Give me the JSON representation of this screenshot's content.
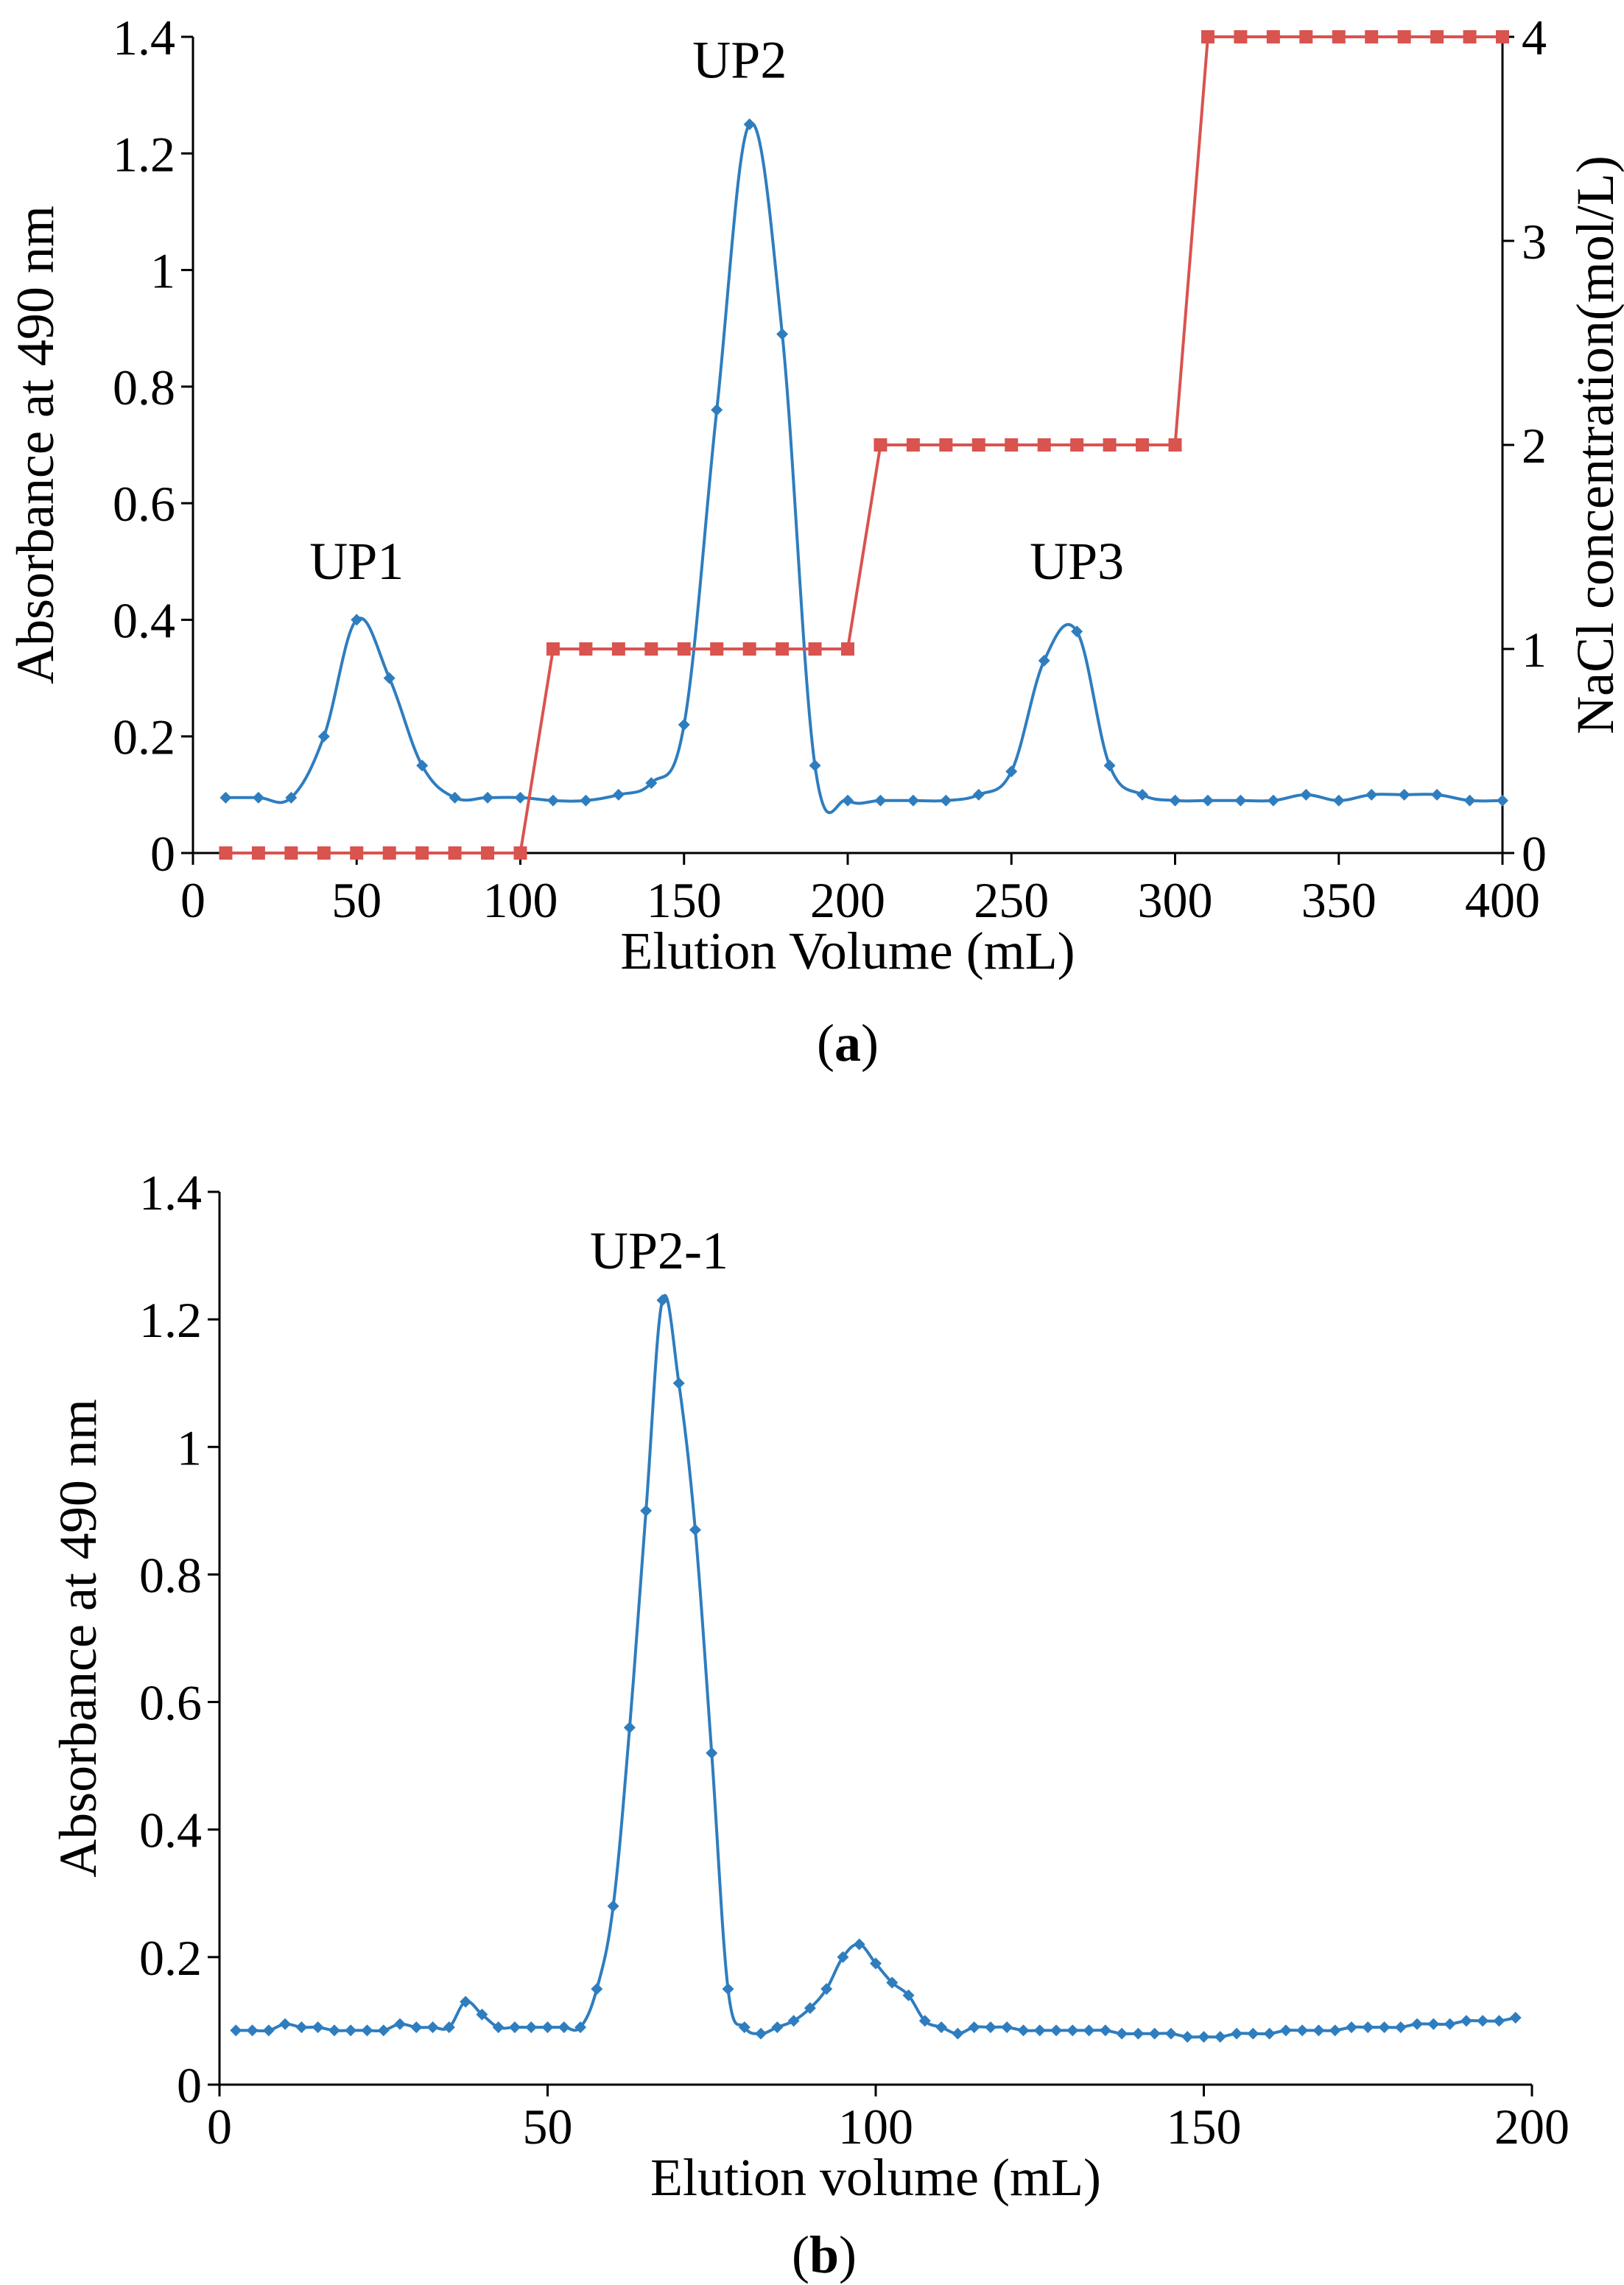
{
  "chart_data": [
    {
      "type": "line",
      "panel_label": "a",
      "xlabel": "Elution Volume (mL)",
      "ylabel": "Absorbance at 490 nm",
      "y2label": "NaCl concentration(mol/L)",
      "xlim": [
        0,
        400
      ],
      "ylim": [
        0,
        1.4
      ],
      "y2lim": [
        0,
        4
      ],
      "xticks": [
        "0",
        "50",
        "100",
        "150",
        "200",
        "250",
        "300",
        "350",
        "400"
      ],
      "yticks": [
        "0",
        "0.2",
        "0.4",
        "0.6",
        "0.8",
        "1",
        "1.2",
        "1.4"
      ],
      "y2ticks": [
        "0",
        "1",
        "2",
        "3",
        "4"
      ],
      "grid": false,
      "annotations": [
        {
          "text": "UP1",
          "x": 50,
          "y": 0.47
        },
        {
          "text": "UP2",
          "x": 167,
          "y": 1.33
        },
        {
          "text": "UP3",
          "x": 270,
          "y": 0.47
        }
      ],
      "series": [
        {
          "color": "#2e7dbf",
          "axis": "left",
          "marker": "diamond",
          "x": [
            10,
            20,
            30,
            40,
            50,
            60,
            70,
            80,
            90,
            100,
            110,
            120,
            130,
            140,
            150,
            160,
            170,
            180,
            190,
            200,
            210,
            220,
            230,
            240,
            250,
            260,
            270,
            280,
            290,
            300,
            310,
            320,
            330,
            340,
            350,
            360,
            370,
            380,
            390,
            400
          ],
          "y": [
            0.095,
            0.095,
            0.095,
            0.2,
            0.4,
            0.3,
            0.15,
            0.095,
            0.095,
            0.095,
            0.09,
            0.09,
            0.1,
            0.12,
            0.22,
            0.76,
            1.25,
            0.89,
            0.15,
            0.09,
            0.09,
            0.09,
            0.09,
            0.1,
            0.14,
            0.33,
            0.38,
            0.15,
            0.1,
            0.09,
            0.09,
            0.09,
            0.09,
            0.1,
            0.09,
            0.1,
            0.1,
            0.1,
            0.09,
            0.09
          ]
        },
        {
          "color": "#d9534f",
          "axis": "right",
          "marker": "square",
          "x": [
            10,
            20,
            30,
            40,
            50,
            60,
            70,
            80,
            90,
            100,
            110,
            120,
            130,
            140,
            150,
            160,
            170,
            180,
            190,
            200,
            210,
            220,
            230,
            240,
            250,
            260,
            270,
            280,
            290,
            300,
            310,
            320,
            330,
            340,
            350,
            360,
            370,
            380,
            390,
            400
          ],
          "y": [
            0,
            0,
            0,
            0,
            0,
            0,
            0,
            0,
            0,
            0,
            1,
            1,
            1,
            1,
            1,
            1,
            1,
            1,
            1,
            1,
            2,
            2,
            2,
            2,
            2,
            2,
            2,
            2,
            2,
            2,
            4,
            4,
            4,
            4,
            4,
            4,
            4,
            4,
            4,
            4
          ]
        }
      ]
    },
    {
      "type": "line",
      "panel_label": "b",
      "xlabel": "Elution volume (mL)",
      "ylabel": "Absorbance at 490 nm",
      "xlim": [
        0,
        200
      ],
      "ylim": [
        0,
        1.4
      ],
      "xticks": [
        "0",
        "50",
        "100",
        "150",
        "200"
      ],
      "yticks": [
        "0",
        "0.2",
        "0.4",
        "0.6",
        "0.8",
        "1",
        "1.2",
        "1.4"
      ],
      "grid": false,
      "annotations": [
        {
          "text": "UP2-1",
          "x": 67,
          "y": 1.28
        }
      ],
      "series": [
        {
          "color": "#2e7dbf",
          "axis": "left",
          "marker": "diamond",
          "x": [
            2.5,
            5,
            7.5,
            10,
            12.5,
            15,
            17.5,
            20,
            22.5,
            25,
            27.5,
            30,
            32.5,
            35,
            37.5,
            40,
            42.5,
            45,
            47.5,
            50,
            52.5,
            55,
            57.5,
            60,
            62.5,
            65,
            67.5,
            70,
            72.5,
            75,
            77.5,
            80,
            82.5,
            85,
            87.5,
            90,
            92.5,
            95,
            97.5,
            100,
            102.5,
            105,
            107.5,
            110,
            112.5,
            115,
            117.5,
            120,
            122.5,
            125,
            127.5,
            130,
            132.5,
            135,
            137.5,
            140,
            142.5,
            145,
            147.5,
            150,
            152.5,
            155,
            157.5,
            160,
            162.5,
            165,
            167.5,
            170,
            172.5,
            175,
            177.5,
            180,
            182.5,
            185,
            187.5,
            190,
            192.5,
            195,
            197.5
          ],
          "y": [
            0.085,
            0.085,
            0.085,
            0.095,
            0.09,
            0.09,
            0.085,
            0.085,
            0.085,
            0.085,
            0.095,
            0.09,
            0.09,
            0.09,
            0.13,
            0.11,
            0.09,
            0.09,
            0.09,
            0.09,
            0.09,
            0.09,
            0.15,
            0.28,
            0.56,
            0.9,
            1.23,
            1.1,
            0.87,
            0.52,
            0.15,
            0.09,
            0.08,
            0.09,
            0.1,
            0.12,
            0.15,
            0.2,
            0.22,
            0.19,
            0.16,
            0.14,
            0.1,
            0.09,
            0.08,
            0.09,
            0.09,
            0.09,
            0.085,
            0.085,
            0.085,
            0.085,
            0.085,
            0.085,
            0.08,
            0.08,
            0.08,
            0.08,
            0.075,
            0.075,
            0.075,
            0.08,
            0.08,
            0.08,
            0.085,
            0.085,
            0.085,
            0.085,
            0.09,
            0.09,
            0.09,
            0.09,
            0.095,
            0.095,
            0.095,
            0.1,
            0.1,
            0.1,
            0.105
          ]
        }
      ]
    }
  ]
}
